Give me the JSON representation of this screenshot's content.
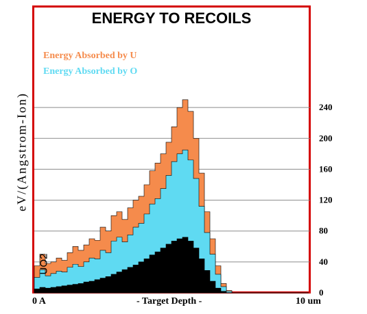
{
  "chart_data": {
    "type": "area",
    "title": "ENERGY TO RECOILS",
    "ylabel": "eV/(Angstrom-Ion)",
    "xlabel": "- Target Depth -",
    "x_tick_labels": [
      "0 A",
      "10 um"
    ],
    "xlim": [
      0,
      100
    ],
    "x_unit_note": "percent of target depth (0 A to 10 um)",
    "ylim": [
      0,
      280
    ],
    "y_ticks": [
      0,
      40,
      80,
      120,
      160,
      200,
      240
    ],
    "grid": true,
    "compound_label": "UO2",
    "legend_placement": "top-left",
    "layers": [
      {
        "name": "Energy Absorbed by  U",
        "color": "#f58b4c"
      },
      {
        "name": "Energy Absorbed by  O",
        "color": "#5fdaf2"
      },
      {
        "name": "",
        "color": "#000000"
      }
    ],
    "x": [
      0,
      2,
      4,
      6,
      8,
      10,
      12,
      14,
      16,
      18,
      20,
      22,
      24,
      26,
      28,
      30,
      32,
      34,
      36,
      38,
      40,
      42,
      44,
      46,
      48,
      50,
      52,
      54,
      56,
      58,
      60,
      62,
      64,
      66,
      68,
      70,
      72,
      74,
      76,
      78,
      80,
      82,
      84,
      86,
      88,
      90,
      92,
      94,
      96,
      98,
      100
    ],
    "total": [
      35,
      50,
      38,
      40,
      45,
      42,
      52,
      60,
      55,
      62,
      70,
      68,
      85,
      80,
      100,
      105,
      95,
      110,
      120,
      125,
      140,
      158,
      168,
      180,
      195,
      215,
      240,
      250,
      235,
      200,
      155,
      105,
      70,
      35,
      12,
      3,
      0,
      0,
      0,
      0,
      0,
      0,
      0,
      0,
      0,
      0,
      0,
      0,
      0,
      0,
      0
    ],
    "oxygen": [
      20,
      30,
      22,
      25,
      28,
      27,
      33,
      37,
      34,
      40,
      45,
      44,
      55,
      52,
      67,
      72,
      66,
      75,
      85,
      90,
      102,
      115,
      122,
      135,
      152,
      170,
      180,
      185,
      172,
      148,
      112,
      78,
      50,
      24,
      8,
      2,
      0,
      0,
      0,
      0,
      0,
      0,
      0,
      0,
      0,
      0,
      0,
      0,
      0,
      0,
      0
    ],
    "uranium_black": [
      5,
      7,
      6,
      7,
      8,
      9,
      10,
      11,
      12,
      14,
      15,
      17,
      19,
      21,
      24,
      27,
      30,
      33,
      36,
      40,
      44,
      49,
      53,
      58,
      63,
      67,
      70,
      72,
      67,
      58,
      44,
      29,
      15,
      6,
      2,
      0,
      0,
      0,
      0,
      0,
      0,
      0,
      0,
      0,
      0,
      0,
      0,
      0,
      0,
      0,
      0
    ]
  }
}
